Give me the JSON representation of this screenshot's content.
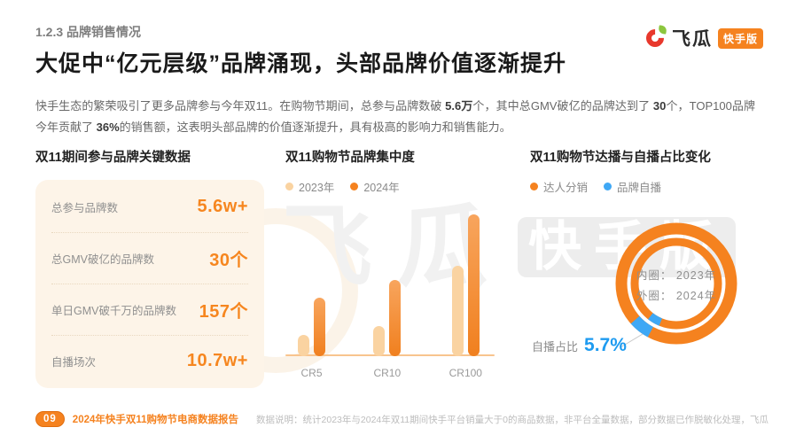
{
  "page": {
    "section_label": "1.2.3 品牌销售情况",
    "title": "大促中“亿元层级”品牌涌现，头部品牌价值逐渐提升",
    "intro_segments": [
      {
        "text": "快手生态的繁荣吸引了更多品牌参与今年双11。在购物节期间，总参与品牌数破 ",
        "bold": false
      },
      {
        "text": "5.6万",
        "bold": true
      },
      {
        "text": "个，其中总GMV破亿的品牌达到了 ",
        "bold": false
      },
      {
        "text": "30",
        "bold": true
      },
      {
        "text": "个，TOP100品牌今年贡献了 ",
        "bold": false
      },
      {
        "text": "36%",
        "bold": true
      },
      {
        "text": "的销售额，这表明头部品牌的价值逐渐提升，具有极高的影响力和销售能力。",
        "bold": false
      }
    ]
  },
  "logo": {
    "brand": "飞瓜",
    "edition_badge": "快手版"
  },
  "watermark": {
    "text_left": "飞瓜",
    "text_right": "快手版"
  },
  "key_data": {
    "title": "双11期间参与品牌关键数据",
    "rows": [
      {
        "label": "总参与品牌数",
        "value": "5.6w+"
      },
      {
        "label": "总GMV破亿的品牌数",
        "value": "30个"
      },
      {
        "label": "单日GMV破千万的品牌数",
        "value": "157个"
      },
      {
        "label": "自播场次",
        "value": "10.7w+"
      }
    ]
  },
  "chart_data": [
    {
      "type": "bar",
      "title": "双11购物节品牌集中度",
      "categories": [
        "CR5",
        "CR10",
        "CR100"
      ],
      "series": [
        {
          "name": "2023年",
          "color": "#fad3a1",
          "values": [
            15,
            21,
            64
          ]
        },
        {
          "name": "2024年",
          "color": "#f5821f",
          "values": [
            41,
            54,
            100
          ]
        }
      ],
      "values_note": "柱高为像素估算的相对值（图中未标注数值），最大柱=100",
      "legend_position": "top-left",
      "grid": false,
      "xlabel": "",
      "ylabel": ""
    },
    {
      "type": "pie",
      "title": "双11购物节达播与自播占比变化",
      "legend": [
        {
          "name": "达人分销",
          "color": "#f5821f"
        },
        {
          "name": "品牌自播",
          "color": "#3fa8f5"
        }
      ],
      "rings": [
        {
          "ring": "内圈",
          "year": "2023年",
          "slices": [
            {
              "name": "达人分销",
              "value": 95.5
            },
            {
              "name": "品牌自播",
              "value": 4.5
            }
          ],
          "estimated": true
        },
        {
          "ring": "外圈",
          "year": "2024年",
          "slices": [
            {
              "name": "达人分销",
              "value": 94.3
            },
            {
              "name": "品牌自播",
              "value": 5.7
            }
          ]
        }
      ],
      "center_note_lines": [
        "内圈： 2023年",
        "外圈： 2024年"
      ],
      "annotation": {
        "label": "自播占比",
        "value": "5.7%"
      }
    }
  ],
  "footer": {
    "page_number": "09",
    "report_title": "2024年快手双11购物节电商数据报告",
    "data_note": "数据说明：统计2023年与2024年双11期间快手平台销量大于0的商品数据，非平台全量数据，部分数据已作脱敏化处理，飞瓜"
  },
  "colors": {
    "accent_orange": "#f5821f",
    "light_orange_series": "#fad3a1",
    "value_orange": "#f6861f",
    "blue": "#3fa8f5",
    "annotation_blue": "#1e9bf0",
    "panel_background": "#fdf4e8"
  }
}
